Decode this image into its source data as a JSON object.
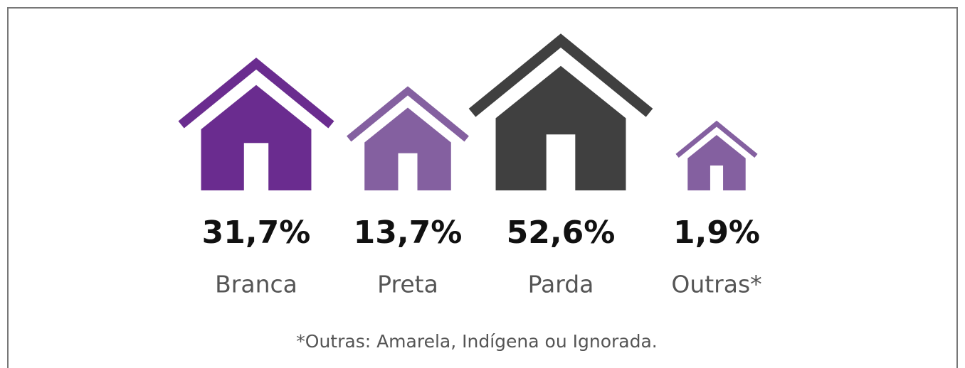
{
  "chart_data": {
    "type": "pictogram",
    "categories": [
      "Branca",
      "Preta",
      "Parda",
      "Outras*"
    ],
    "values": [
      31.7,
      13.7,
      52.6,
      1.9
    ],
    "value_labels": [
      "31,7%",
      "13,7%",
      "52,6%",
      "1,9%"
    ],
    "colors": [
      "#6a2c8f",
      "#8460a0",
      "#404040",
      "#8460a0"
    ],
    "footnote": "*Outras: Amarela, Indígena ou Ignorada."
  }
}
